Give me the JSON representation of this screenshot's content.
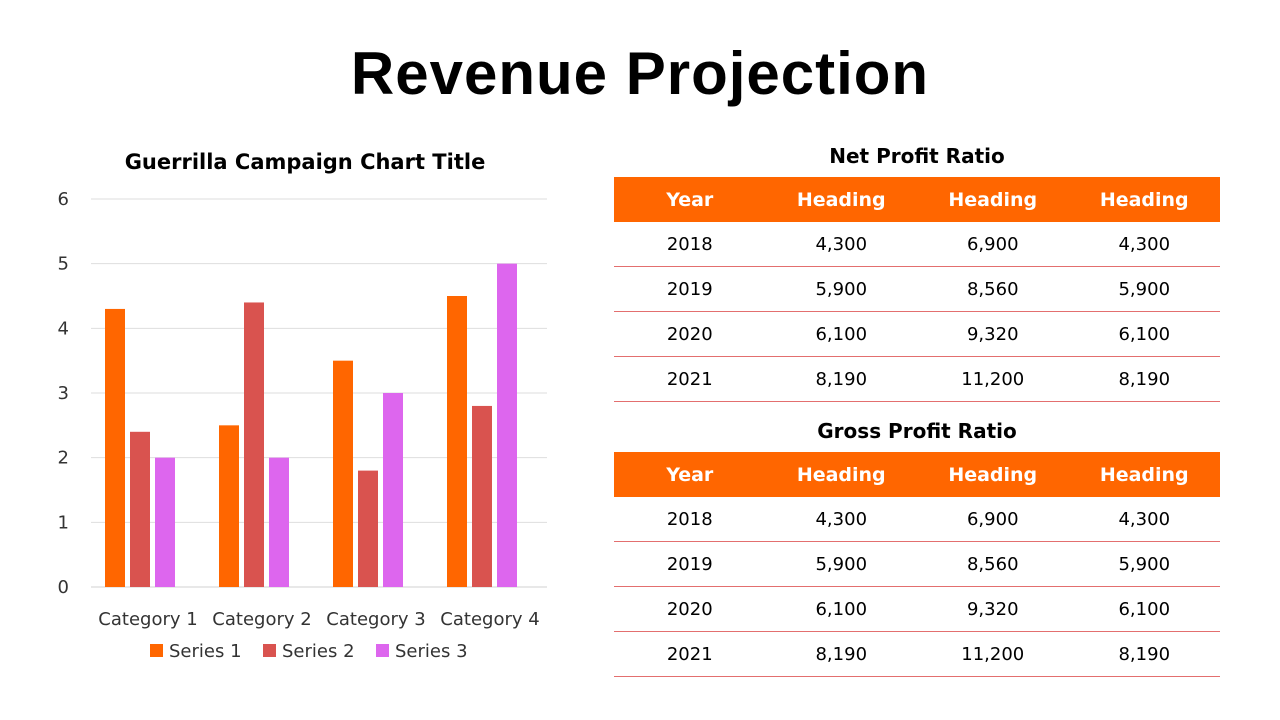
{
  "page": {
    "title": "Revenue Projection"
  },
  "colors": {
    "accent": "#ff6600",
    "series1": "#ff6600",
    "series2": "#d9534f",
    "series3": "#dd66ee",
    "row_line": "#e36f6f"
  },
  "chart_data": {
    "type": "bar",
    "title": "Guerrilla Campaign Chart Title",
    "categories": [
      "Category 1",
      "Category 2",
      "Category 3",
      "Category 4"
    ],
    "series": [
      {
        "name": "Series 1",
        "values": [
          4.3,
          2.5,
          3.5,
          4.5
        ]
      },
      {
        "name": "Series 2",
        "values": [
          2.4,
          4.4,
          1.8,
          2.8
        ]
      },
      {
        "name": "Series 3",
        "values": [
          2,
          2,
          3,
          5
        ]
      }
    ],
    "ylim": [
      0,
      6
    ],
    "yticks": [
      0,
      1,
      2,
      3,
      4,
      5,
      6
    ],
    "grid": true,
    "legend": "bottom"
  },
  "tables": [
    {
      "title": "Net Profit Ratio",
      "headers": [
        "Year",
        "Heading",
        "Heading",
        "Heading"
      ],
      "rows": [
        [
          "2018",
          "4,300",
          "6,900",
          "4,300"
        ],
        [
          "2019",
          "5,900",
          "8,560",
          "5,900"
        ],
        [
          "2020",
          "6,100",
          "9,320",
          "6,100"
        ],
        [
          "2021",
          "8,190",
          "11,200",
          "8,190"
        ]
      ]
    },
    {
      "title": "Gross Profit Ratio",
      "headers": [
        "Year",
        "Heading",
        "Heading",
        "Heading"
      ],
      "rows": [
        [
          "2018",
          "4,300",
          "6,900",
          "4,300"
        ],
        [
          "2019",
          "5,900",
          "8,560",
          "5,900"
        ],
        [
          "2020",
          "6,100",
          "9,320",
          "6,100"
        ],
        [
          "2021",
          "8,190",
          "11,200",
          "8,190"
        ]
      ]
    }
  ]
}
